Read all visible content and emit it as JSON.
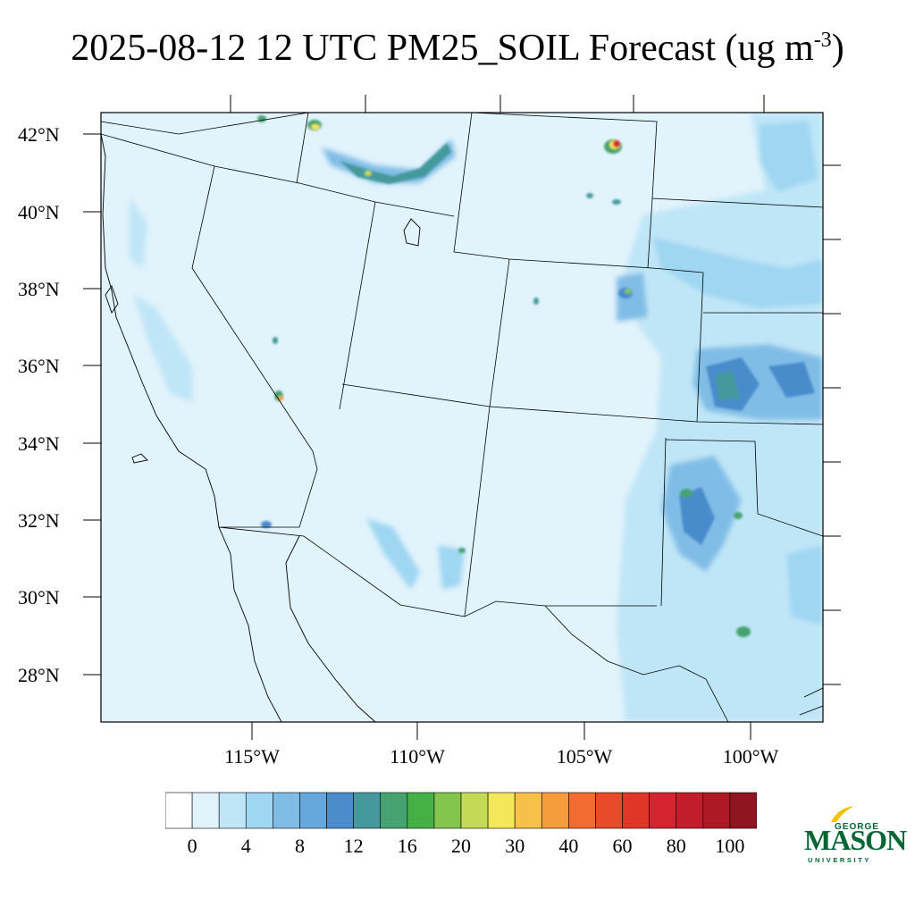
{
  "title": {
    "main": "2025-08-12 12 UTC PM25_SOIL Forecast (ug m",
    "exponent": "-3",
    "close": ")"
  },
  "axes": {
    "lat_labels": [
      "42°N",
      "40°N",
      "38°N",
      "36°N",
      "34°N",
      "32°N",
      "30°N",
      "28°N"
    ],
    "lon_labels": [
      "115°W",
      "110°W",
      "105°W",
      "100°W"
    ]
  },
  "colorbar": {
    "labels": [
      "0",
      "4",
      "8",
      "12",
      "16",
      "20",
      "30",
      "40",
      "60",
      "80",
      "100"
    ],
    "colors": [
      "#ffffff",
      "#e1f3fb",
      "#bfe6f7",
      "#9fd6f2",
      "#80bde6",
      "#66a8dc",
      "#4a8ccc",
      "#45999c",
      "#45a371",
      "#45b045",
      "#84c64d",
      "#c4d955",
      "#f5e75a",
      "#f7c149",
      "#f59c3c",
      "#f26b30",
      "#e84a2a",
      "#e03628",
      "#d42430",
      "#c21d2a",
      "#ad1a25",
      "#8f1620"
    ]
  },
  "logo": {
    "top": "GEORGE",
    "name": "MASON",
    "bottom": "UNIVERSITY",
    "color": "#006633",
    "accent": "#f2c200"
  },
  "colors": {
    "background_field": "#e1f3fb",
    "boundary": "#000000"
  }
}
